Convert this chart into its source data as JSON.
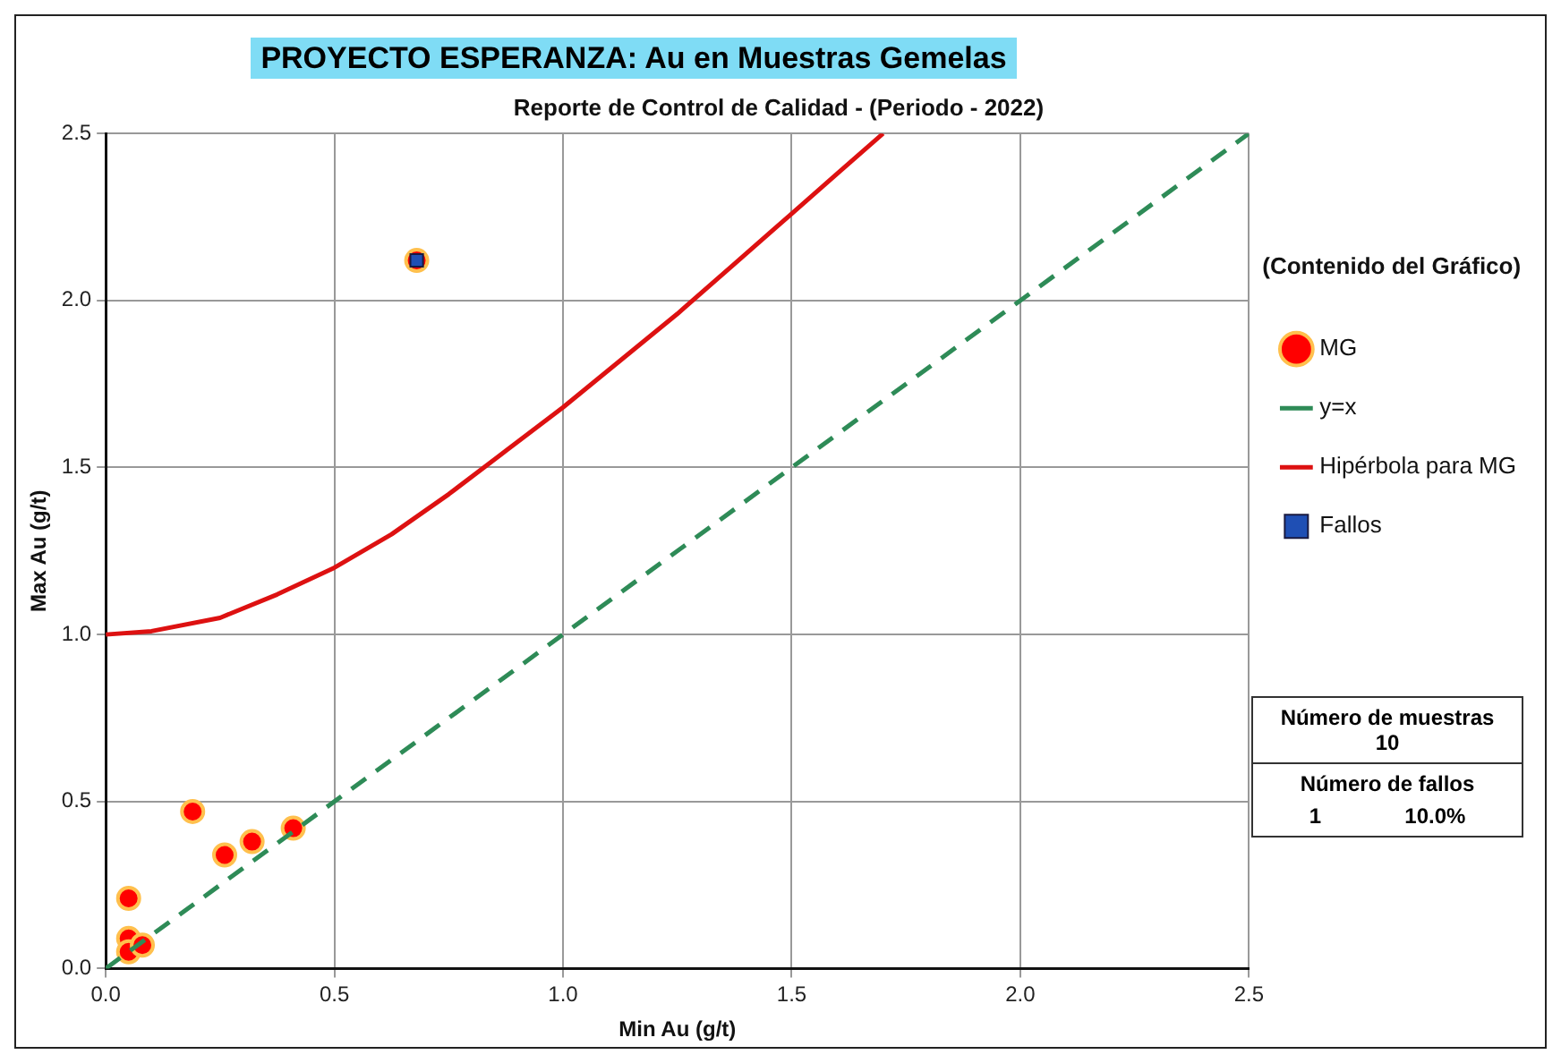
{
  "chart_data": {
    "type": "scatter",
    "title": "PROYECTO ESPERANZA: Au en Muestras Gemelas",
    "subtitle": "Reporte de Control de Calidad - (Periodo - 2022)",
    "xlabel": "Min Au (g/t)",
    "ylabel": "Max Au (g/t)",
    "legend_title": "(Contenido del Gráfico)",
    "series": [
      {
        "name": "MG",
        "type": "scatter",
        "color": "#ff0000",
        "marker": "circle",
        "x": [
          0.05,
          0.05,
          0.05,
          0.08,
          0.19,
          0.26,
          0.32,
          0.41,
          0.68
        ],
        "values": [
          0.21,
          0.09,
          0.05,
          0.07,
          0.47,
          0.34,
          0.38,
          0.42,
          2.12
        ]
      },
      {
        "name": "y=x",
        "type": "line",
        "color": "#2e8b57",
        "line_style": "dashed",
        "marker": "none",
        "x": [
          0,
          2.5
        ],
        "values": [
          0,
          2.5
        ]
      },
      {
        "name": "Hipérbola para MG",
        "type": "line",
        "color": "#dd1111",
        "line_style": "solid",
        "marker": "none",
        "x": [
          0,
          0.1,
          0.25,
          0.375,
          0.5,
          0.625,
          0.75,
          0.875,
          1.0,
          1.125,
          1.25,
          1.375,
          1.5,
          1.6,
          1.7
        ],
        "values": [
          1.0,
          1.01,
          1.05,
          1.12,
          1.2,
          1.3,
          1.42,
          1.55,
          1.68,
          1.82,
          1.96,
          2.11,
          2.26,
          2.38,
          2.5
        ]
      },
      {
        "name": "Fallos",
        "type": "scatter",
        "color": "#1f4fb4",
        "marker": "square",
        "x": [
          0.68
        ],
        "values": [
          2.12
        ]
      }
    ],
    "xlim": [
      0,
      2.5
    ],
    "ylim": [
      0,
      2.5
    ],
    "xticks": [
      {
        "value": 0,
        "label": "0.0"
      },
      0.5,
      {
        "value": 1,
        "label": "1.0"
      },
      1.5,
      {
        "value": 2,
        "label": "2.0"
      },
      2.5
    ],
    "yticks": [
      {
        "value": 0,
        "label": "0.0"
      },
      0.5,
      {
        "value": 1,
        "label": "1.0"
      },
      1.5,
      {
        "value": 2,
        "label": "2.0"
      },
      2.5
    ],
    "grid": true,
    "legend": "right",
    "annotations": [
      "Número de muestras",
      "10",
      "Número de fallos",
      "1",
      "10.0%"
    ]
  }
}
